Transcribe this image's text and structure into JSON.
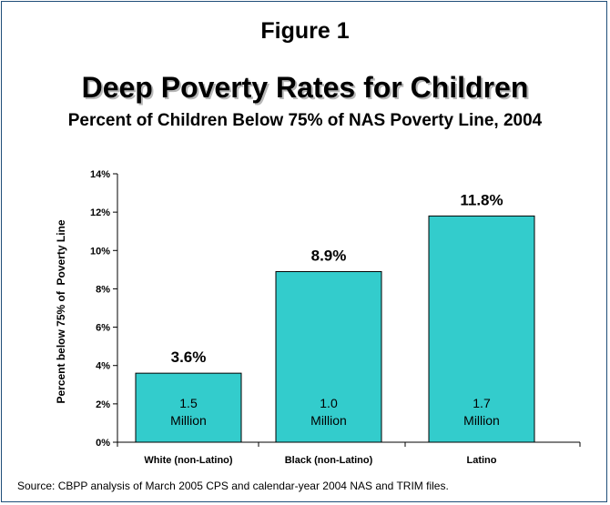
{
  "figure_label": "Figure 1",
  "source": "Source: CBPP analysis of March 2005 CPS and calendar-year 2004 NAS and TRIM files.",
  "colors": {
    "bar": "#33cccc",
    "bar_stroke": "#000000",
    "frame": "#1f4e79"
  },
  "chart_data": {
    "type": "bar",
    "title": "Deep Poverty Rates for Children",
    "subtitle": "Percent of Children Below 75% of NAS Poverty Line, 2004",
    "ylabel": "Percent below 75% of  Poverty Line",
    "xlabel": "",
    "ylim": [
      0,
      14
    ],
    "yticks": [
      "0%",
      "2%",
      "4%",
      "6%",
      "8%",
      "10%",
      "12%",
      "14%"
    ],
    "grid": false,
    "categories": [
      "White (non-Latino)",
      "Black (non-Latino)",
      "Latino"
    ],
    "values": [
      3.6,
      8.9,
      11.8
    ],
    "value_labels": [
      "3.6%",
      "8.9%",
      "11.8%"
    ],
    "bar_annotations": [
      [
        "1.5",
        "Million"
      ],
      [
        "1.0",
        "Million"
      ],
      [
        "1.7",
        "Million"
      ]
    ]
  }
}
